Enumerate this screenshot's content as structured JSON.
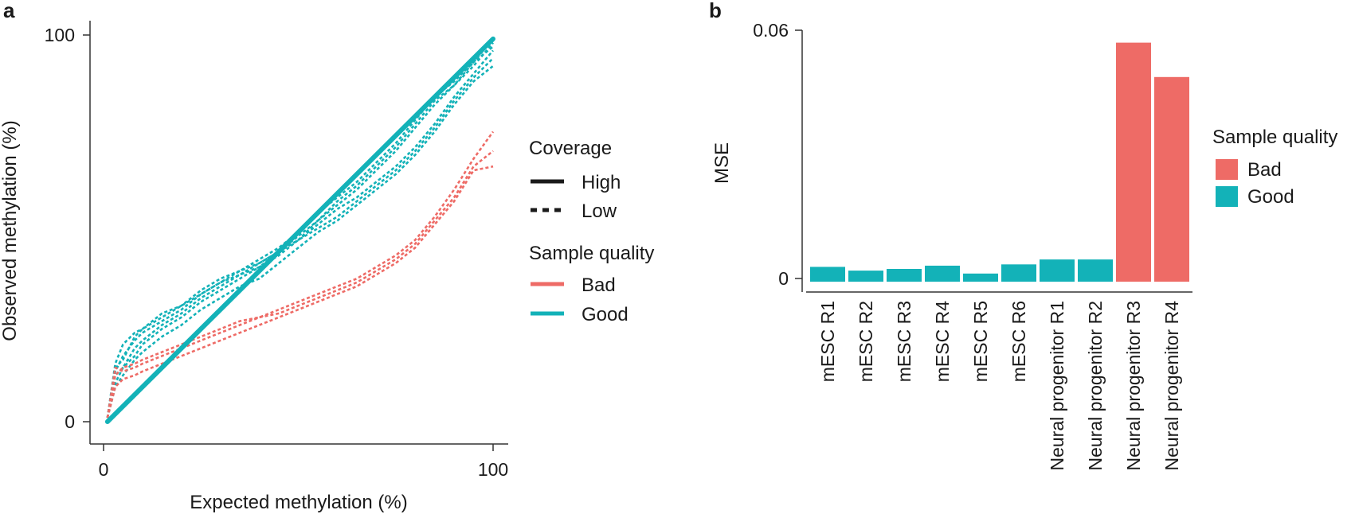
{
  "colors": {
    "bad": "#EE6B66",
    "good": "#13B2B8",
    "axis": "#333333",
    "text": "#1a1a1a"
  },
  "chart_data": [
    {
      "panel": "a",
      "type": "line",
      "xlabel": "Expected methylation (%)",
      "ylabel": "Observed methylation (%)",
      "xlim": [
        0,
        100
      ],
      "ylim": [
        0,
        100
      ],
      "xticks": [
        "0",
        "100"
      ],
      "yticks": [
        "0",
        "100"
      ],
      "legend": {
        "coverage_title": "Coverage",
        "coverage_items": [
          {
            "label": "High",
            "style": "solid"
          },
          {
            "label": "Low",
            "style": "dashed"
          }
        ],
        "quality_title": "Sample quality",
        "quality_items": [
          {
            "label": "Bad",
            "color": "#EE6B66"
          },
          {
            "label": "Good",
            "color": "#13B2B8"
          }
        ],
        "placement": "right"
      },
      "series": [
        {
          "name": "Good high coverage",
          "quality": "good",
          "coverage": "high",
          "x": [
            1,
            100
          ],
          "y": [
            0,
            99
          ]
        },
        {
          "name": "Good low coverage 1",
          "quality": "good",
          "coverage": "low",
          "x": [
            1,
            3,
            5,
            8,
            10,
            15,
            20,
            25,
            30,
            35,
            40,
            45,
            50,
            55,
            60,
            65,
            70,
            75,
            80,
            85,
            90,
            95,
            100
          ],
          "y": [
            1,
            14,
            16,
            22,
            24,
            27,
            30,
            33,
            36,
            38,
            40,
            44,
            47,
            52,
            56,
            60,
            65,
            70,
            76,
            82,
            87,
            93,
            99
          ]
        },
        {
          "name": "Good low coverage 2",
          "quality": "good",
          "coverage": "low",
          "x": [
            1,
            3,
            5,
            8,
            10,
            15,
            20,
            25,
            30,
            35,
            40,
            45,
            50,
            55,
            60,
            65,
            70,
            75,
            80,
            85,
            90,
            95,
            100
          ],
          "y": [
            1,
            15,
            20,
            23,
            24,
            28,
            30,
            34,
            37,
            39,
            41,
            44,
            48,
            52,
            57,
            61,
            66,
            71,
            77,
            83,
            87,
            92,
            98
          ]
        },
        {
          "name": "Good low coverage 3",
          "quality": "good",
          "coverage": "low",
          "x": [
            1,
            3,
            5,
            8,
            10,
            15,
            20,
            25,
            30,
            35,
            40,
            45,
            50,
            55,
            60,
            65,
            70,
            75,
            80,
            85,
            90,
            95,
            100
          ],
          "y": [
            1,
            12,
            14,
            19,
            21,
            25,
            28,
            32,
            35,
            38,
            41,
            44,
            47,
            51,
            55,
            58,
            62,
            66,
            71,
            77,
            84,
            90,
            96
          ]
        },
        {
          "name": "Good low coverage 4",
          "quality": "good",
          "coverage": "low",
          "x": [
            1,
            3,
            5,
            8,
            10,
            15,
            20,
            25,
            30,
            35,
            40,
            45,
            50,
            55,
            60,
            65,
            70,
            75,
            80,
            85,
            90,
            95,
            100
          ],
          "y": [
            1,
            10,
            14,
            17,
            20,
            24,
            27,
            31,
            34,
            37,
            40,
            43,
            47,
            50,
            53,
            57,
            61,
            65,
            70,
            76,
            83,
            89,
            94
          ]
        },
        {
          "name": "Good low coverage 5",
          "quality": "good",
          "coverage": "low",
          "x": [
            1,
            3,
            5,
            8,
            10,
            15,
            20,
            25,
            30,
            35,
            40,
            45,
            50,
            55,
            60,
            65,
            70,
            75,
            80,
            85,
            90,
            95,
            100
          ],
          "y": [
            1,
            9,
            12,
            16,
            18,
            22,
            25,
            29,
            32,
            35,
            37,
            41,
            45,
            49,
            52,
            56,
            60,
            64,
            69,
            75,
            82,
            88,
            92
          ]
        },
        {
          "name": "Good low coverage 6",
          "quality": "good",
          "coverage": "low",
          "x": [
            1,
            3,
            5,
            8,
            10,
            15,
            20,
            25,
            30,
            35,
            40,
            45,
            50,
            55,
            60,
            65,
            70,
            75,
            80,
            85,
            90,
            95,
            100
          ],
          "y": [
            1,
            13,
            17,
            21,
            23,
            26,
            29,
            33,
            36,
            39,
            42,
            45,
            49,
            54,
            58,
            62,
            67,
            72,
            78,
            84,
            88,
            93,
            97
          ]
        },
        {
          "name": "Bad low coverage 1",
          "quality": "bad",
          "coverage": "low",
          "x": [
            1,
            3,
            5,
            8,
            10,
            15,
            20,
            25,
            30,
            35,
            40,
            45,
            50,
            55,
            60,
            65,
            70,
            75,
            80,
            85,
            90,
            95,
            100
          ],
          "y": [
            1,
            12,
            14,
            15,
            16,
            18,
            20,
            22,
            24,
            26,
            27,
            29,
            31,
            33,
            35,
            37,
            40,
            43,
            47,
            53,
            60,
            68,
            75
          ]
        },
        {
          "name": "Bad low coverage 2",
          "quality": "bad",
          "coverage": "low",
          "x": [
            1,
            3,
            5,
            8,
            10,
            15,
            20,
            25,
            30,
            35,
            40,
            45,
            50,
            55,
            60,
            65,
            70,
            75,
            80,
            85,
            90,
            95,
            100
          ],
          "y": [
            1,
            9,
            11,
            12,
            13,
            15,
            17,
            19,
            21,
            23,
            25,
            27,
            29,
            31,
            33,
            35,
            38,
            41,
            45,
            51,
            57,
            65,
            66
          ]
        },
        {
          "name": "Bad low coverage 3",
          "quality": "bad",
          "coverage": "low",
          "x": [
            1,
            3,
            5,
            8,
            10,
            15,
            20,
            25,
            30,
            35,
            40,
            45,
            50,
            55,
            60,
            65,
            70,
            75,
            80,
            85,
            90,
            95,
            100
          ],
          "y": [
            1,
            14,
            13,
            14,
            15,
            17,
            19,
            21,
            23,
            25,
            27,
            28,
            30,
            32,
            34,
            36,
            39,
            42,
            46,
            52,
            58,
            66,
            70
          ]
        }
      ]
    },
    {
      "panel": "b",
      "type": "bar",
      "ylabel": "MSE",
      "xlabel": "",
      "ylim": [
        0,
        0.06
      ],
      "yticks": [
        "0",
        "0.06"
      ],
      "categories": [
        "mESC R1",
        "mESC R2",
        "mESC R3",
        "mESC R4",
        "mESC R5",
        "mESC R6",
        "Neural progenitor R1",
        "Neural progenitor R2",
        "Neural progenitor R3",
        "Neural progenitor R4"
      ],
      "values": [
        0.0028,
        0.0019,
        0.0023,
        0.0031,
        0.0012,
        0.0034,
        0.0046,
        0.0046,
        0.057,
        0.0487
      ],
      "quality": [
        "good",
        "good",
        "good",
        "good",
        "good",
        "good",
        "good",
        "good",
        "bad",
        "bad"
      ],
      "legend": {
        "title": "Sample quality",
        "items": [
          {
            "label": "Bad",
            "color": "#EE6B66"
          },
          {
            "label": "Good",
            "color": "#13B2B8"
          }
        ],
        "placement": "right"
      }
    }
  ]
}
